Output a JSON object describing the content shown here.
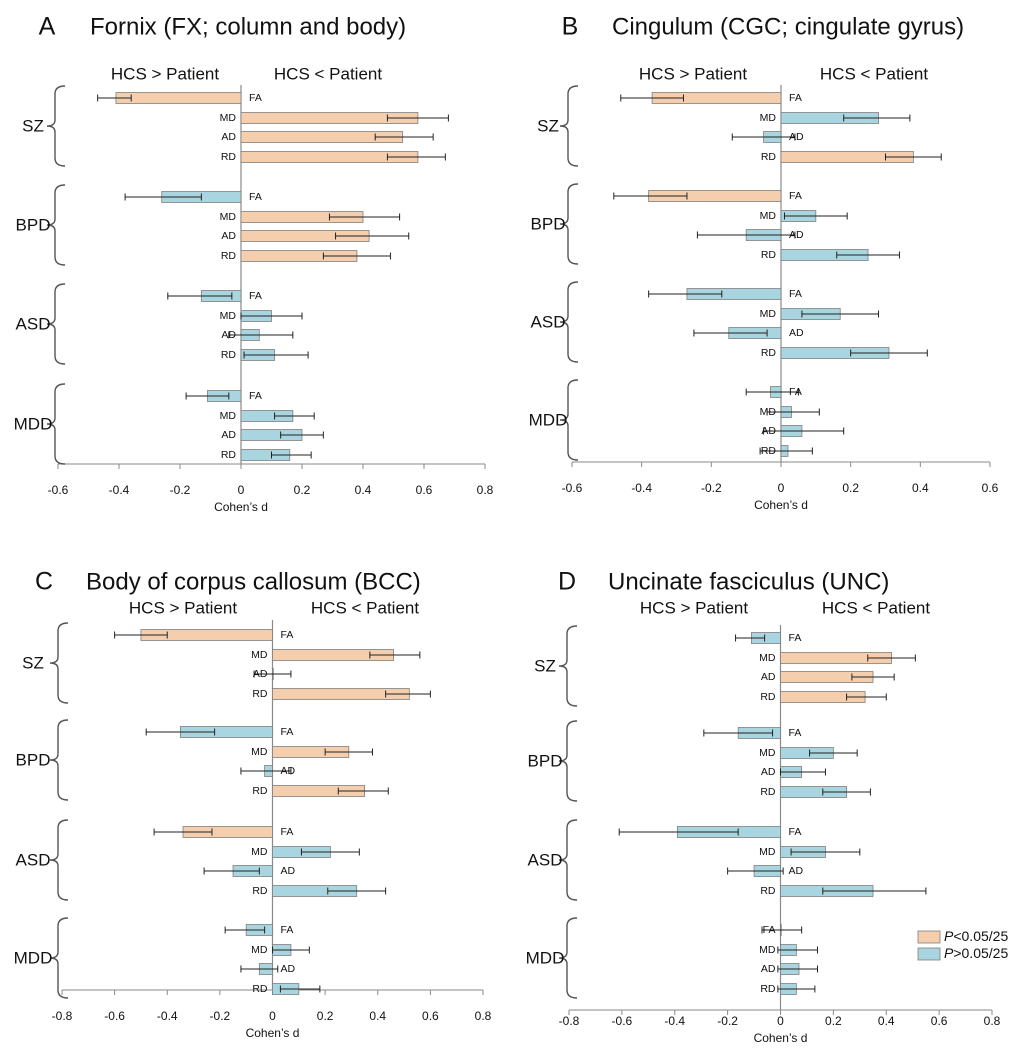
{
  "chart_data": [
    {
      "type": "bar",
      "letter": "A",
      "title": "Fornix (FX; column and body)",
      "direction_labels": [
        "HCS > Patient",
        "HCS < Patient"
      ],
      "xlabel": "Cohen’s d",
      "xlim": [
        -0.6,
        0.8
      ],
      "xticks": [
        "-0.6",
        "-0.4",
        "-0.2",
        "0",
        "0.2",
        "0.4",
        "0.6",
        "0.8"
      ],
      "groups": [
        {
          "name": "SZ",
          "bars": [
            {
              "metric": "FA",
              "value": -0.41,
              "ci": [
                -0.47,
                -0.36
              ],
              "sig": true
            },
            {
              "metric": "MD",
              "value": 0.58,
              "ci": [
                0.48,
                0.68
              ],
              "sig": true
            },
            {
              "metric": "AD",
              "value": 0.53,
              "ci": [
                0.44,
                0.63
              ],
              "sig": true
            },
            {
              "metric": "RD",
              "value": 0.58,
              "ci": [
                0.48,
                0.67
              ],
              "sig": true
            }
          ]
        },
        {
          "name": "BPD",
          "bars": [
            {
              "metric": "FA",
              "value": -0.26,
              "ci": [
                -0.38,
                -0.13
              ],
              "sig": false
            },
            {
              "metric": "MD",
              "value": 0.4,
              "ci": [
                0.29,
                0.52
              ],
              "sig": true
            },
            {
              "metric": "AD",
              "value": 0.42,
              "ci": [
                0.31,
                0.55
              ],
              "sig": true
            },
            {
              "metric": "RD",
              "value": 0.38,
              "ci": [
                0.27,
                0.49
              ],
              "sig": true
            }
          ]
        },
        {
          "name": "ASD",
          "bars": [
            {
              "metric": "FA",
              "value": -0.13,
              "ci": [
                -0.24,
                -0.03
              ],
              "sig": false
            },
            {
              "metric": "MD",
              "value": 0.1,
              "ci": [
                0.0,
                0.2
              ],
              "sig": false
            },
            {
              "metric": "AD",
              "value": 0.06,
              "ci": [
                -0.04,
                0.17
              ],
              "sig": false
            },
            {
              "metric": "RD",
              "value": 0.11,
              "ci": [
                0.01,
                0.22
              ],
              "sig": false
            }
          ]
        },
        {
          "name": "MDD",
          "bars": [
            {
              "metric": "FA",
              "value": -0.11,
              "ci": [
                -0.18,
                -0.04
              ],
              "sig": false
            },
            {
              "metric": "MD",
              "value": 0.17,
              "ci": [
                0.11,
                0.24
              ],
              "sig": false
            },
            {
              "metric": "AD",
              "value": 0.2,
              "ci": [
                0.13,
                0.27
              ],
              "sig": false
            },
            {
              "metric": "RD",
              "value": 0.16,
              "ci": [
                0.1,
                0.23
              ],
              "sig": false
            }
          ]
        }
      ]
    },
    {
      "type": "bar",
      "letter": "B",
      "title": "Cingulum (CGC; cingulate gyrus)",
      "direction_labels": [
        "HCS > Patient",
        "HCS < Patient"
      ],
      "xlabel": "Cohen’s d",
      "xlim": [
        -0.6,
        0.6
      ],
      "xticks": [
        "-0.6",
        "-0.4",
        "-0.2",
        "0",
        "0.2",
        "0.4",
        "0.6"
      ],
      "groups": [
        {
          "name": "SZ",
          "bars": [
            {
              "metric": "FA",
              "value": -0.37,
              "ci": [
                -0.46,
                -0.28
              ],
              "sig": true
            },
            {
              "metric": "MD",
              "value": 0.28,
              "ci": [
                0.18,
                0.37
              ],
              "sig": false
            },
            {
              "metric": "AD",
              "value": -0.05,
              "ci": [
                -0.14,
                0.04
              ],
              "sig": false
            },
            {
              "metric": "RD",
              "value": 0.38,
              "ci": [
                0.3,
                0.46
              ],
              "sig": true
            }
          ]
        },
        {
          "name": "BPD",
          "bars": [
            {
              "metric": "FA",
              "value": -0.38,
              "ci": [
                -0.48,
                -0.27
              ],
              "sig": true
            },
            {
              "metric": "MD",
              "value": 0.1,
              "ci": [
                0.01,
                0.19
              ],
              "sig": false
            },
            {
              "metric": "AD",
              "value": -0.1,
              "ci": [
                -0.24,
                0.04
              ],
              "sig": false
            },
            {
              "metric": "RD",
              "value": 0.25,
              "ci": [
                0.16,
                0.34
              ],
              "sig": false
            }
          ]
        },
        {
          "name": "ASD",
          "bars": [
            {
              "metric": "FA",
              "value": -0.27,
              "ci": [
                -0.38,
                -0.17
              ],
              "sig": false
            },
            {
              "metric": "MD",
              "value": 0.17,
              "ci": [
                0.06,
                0.28
              ],
              "sig": false
            },
            {
              "metric": "AD",
              "value": -0.15,
              "ci": [
                -0.25,
                -0.04
              ],
              "sig": false
            },
            {
              "metric": "RD",
              "value": 0.31,
              "ci": [
                0.2,
                0.42
              ],
              "sig": false
            }
          ]
        },
        {
          "name": "MDD",
          "bars": [
            {
              "metric": "FA",
              "value": -0.03,
              "ci": [
                -0.1,
                0.05
              ],
              "sig": false
            },
            {
              "metric": "MD",
              "value": 0.03,
              "ci": [
                -0.04,
                0.11
              ],
              "sig": false
            },
            {
              "metric": "AD",
              "value": 0.06,
              "ci": [
                -0.05,
                0.18
              ],
              "sig": false
            },
            {
              "metric": "RD",
              "value": 0.02,
              "ci": [
                -0.06,
                0.09
              ],
              "sig": false
            }
          ]
        }
      ]
    },
    {
      "type": "bar",
      "letter": "C",
      "title": "Body of corpus callosum (BCC)",
      "direction_labels": [
        "HCS > Patient",
        "HCS < Patient"
      ],
      "xlabel": "Cohen’s d",
      "xlim": [
        -0.8,
        0.8
      ],
      "xticks": [
        "-0.8",
        "-0.6",
        "-0.4",
        "-0.2",
        "0",
        "0.2",
        "0.4",
        "0.6",
        "0.8"
      ],
      "groups": [
        {
          "name": "SZ",
          "bars": [
            {
              "metric": "FA",
              "value": -0.5,
              "ci": [
                -0.6,
                -0.4
              ],
              "sig": true
            },
            {
              "metric": "MD",
              "value": 0.46,
              "ci": [
                0.37,
                0.56
              ],
              "sig": true
            },
            {
              "metric": "AD",
              "value": 0.0,
              "ci": [
                -0.07,
                0.07
              ],
              "sig": true
            },
            {
              "metric": "RD",
              "value": 0.52,
              "ci": [
                0.43,
                0.6
              ],
              "sig": true
            }
          ]
        },
        {
          "name": "BPD",
          "bars": [
            {
              "metric": "FA",
              "value": -0.35,
              "ci": [
                -0.48,
                -0.22
              ],
              "sig": false
            },
            {
              "metric": "MD",
              "value": 0.29,
              "ci": [
                0.2,
                0.38
              ],
              "sig": true
            },
            {
              "metric": "AD",
              "value": -0.03,
              "ci": [
                -0.12,
                0.07
              ],
              "sig": false
            },
            {
              "metric": "RD",
              "value": 0.35,
              "ci": [
                0.25,
                0.44
              ],
              "sig": true
            }
          ]
        },
        {
          "name": "ASD",
          "bars": [
            {
              "metric": "FA",
              "value": -0.34,
              "ci": [
                -0.45,
                -0.23
              ],
              "sig": true
            },
            {
              "metric": "MD",
              "value": 0.22,
              "ci": [
                0.11,
                0.33
              ],
              "sig": false
            },
            {
              "metric": "AD",
              "value": -0.15,
              "ci": [
                -0.26,
                -0.05
              ],
              "sig": false
            },
            {
              "metric": "RD",
              "value": 0.32,
              "ci": [
                0.21,
                0.43
              ],
              "sig": false
            }
          ]
        },
        {
          "name": "MDD",
          "bars": [
            {
              "metric": "FA",
              "value": -0.1,
              "ci": [
                -0.18,
                -0.03
              ],
              "sig": false
            },
            {
              "metric": "MD",
              "value": 0.07,
              "ci": [
                0.0,
                0.14
              ],
              "sig": false
            },
            {
              "metric": "AD",
              "value": -0.05,
              "ci": [
                -0.12,
                0.02
              ],
              "sig": false
            },
            {
              "metric": "RD",
              "value": 0.1,
              "ci": [
                0.03,
                0.18
              ],
              "sig": false
            }
          ]
        }
      ]
    },
    {
      "type": "bar",
      "letter": "D",
      "title": "Uncinate fasciculus (UNC)",
      "direction_labels": [
        "HCS > Patient",
        "HCS < Patient"
      ],
      "xlabel": "Cohen’s d",
      "xlim": [
        -0.8,
        0.8
      ],
      "xticks": [
        "-0.8",
        "-0.6",
        "-0.4",
        "-0.2",
        "0",
        "0.2",
        "0.4",
        "0.6",
        "0.8"
      ],
      "groups": [
        {
          "name": "SZ",
          "bars": [
            {
              "metric": "FA",
              "value": -0.11,
              "ci": [
                -0.17,
                -0.06
              ],
              "sig": false
            },
            {
              "metric": "MD",
              "value": 0.42,
              "ci": [
                0.33,
                0.51
              ],
              "sig": true
            },
            {
              "metric": "AD",
              "value": 0.35,
              "ci": [
                0.27,
                0.43
              ],
              "sig": true
            },
            {
              "metric": "RD",
              "value": 0.32,
              "ci": [
                0.25,
                0.4
              ],
              "sig": true
            }
          ]
        },
        {
          "name": "BPD",
          "bars": [
            {
              "metric": "FA",
              "value": -0.16,
              "ci": [
                -0.29,
                -0.03
              ],
              "sig": false
            },
            {
              "metric": "MD",
              "value": 0.2,
              "ci": [
                0.11,
                0.29
              ],
              "sig": false
            },
            {
              "metric": "AD",
              "value": 0.08,
              "ci": [
                0.0,
                0.17
              ],
              "sig": false
            },
            {
              "metric": "RD",
              "value": 0.25,
              "ci": [
                0.16,
                0.34
              ],
              "sig": false
            }
          ]
        },
        {
          "name": "ASD",
          "bars": [
            {
              "metric": "FA",
              "value": -0.39,
              "ci": [
                -0.61,
                -0.16
              ],
              "sig": false
            },
            {
              "metric": "MD",
              "value": 0.17,
              "ci": [
                0.04,
                0.3
              ],
              "sig": false
            },
            {
              "metric": "AD",
              "value": -0.1,
              "ci": [
                -0.2,
                0.01
              ],
              "sig": false
            },
            {
              "metric": "RD",
              "value": 0.35,
              "ci": [
                0.16,
                0.55
              ],
              "sig": false
            }
          ]
        },
        {
          "name": "MDD",
          "bars": [
            {
              "metric": "FA",
              "value": 0.0,
              "ci": [
                -0.07,
                0.08
              ],
              "sig": false
            },
            {
              "metric": "MD",
              "value": 0.06,
              "ci": [
                -0.01,
                0.14
              ],
              "sig": false
            },
            {
              "metric": "AD",
              "value": 0.07,
              "ci": [
                -0.01,
                0.14
              ],
              "sig": false
            },
            {
              "metric": "RD",
              "value": 0.06,
              "ci": [
                -0.01,
                0.13
              ],
              "sig": false
            }
          ]
        }
      ],
      "legend": [
        {
          "prefix": "P",
          "suffix": "<0.05/25",
          "significant": true
        },
        {
          "prefix": "P",
          "suffix": ">0.05/25",
          "significant": false
        }
      ]
    }
  ],
  "colors": {
    "significant": "#f5cfad",
    "nonsignificant": "#a8d5df",
    "bar_stroke": "#7f7f7f",
    "axis": "#8a8a8a",
    "text": "#111111"
  }
}
